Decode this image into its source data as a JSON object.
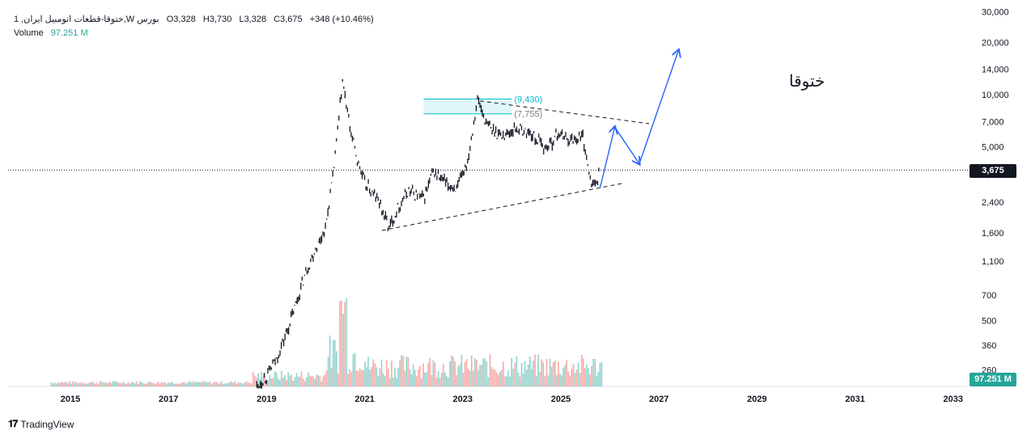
{
  "header": {
    "symbol": "1 ,ختوقا-قطعات اتومبیل ایران,W بورس",
    "open": "O3,328",
    "high": "H3,730",
    "low": "L3,328",
    "close": "C3,675",
    "change": "+348 (+10.46%)",
    "volume_label": "Volume",
    "volume_value": "97.251 M"
  },
  "annotation_text": "ختوقا",
  "last_price_badge": "3,675",
  "volume_badge": "97.251 M",
  "zone_top_label": "(9,430)",
  "zone_bottom_label": "(7,755)",
  "brand": "TradingView",
  "colors": {
    "candle": "#131722",
    "volume_up": "#26a69a",
    "volume_down": "#ef5350",
    "projection": "#2962ff",
    "zone_fill": "#e0f7fa",
    "zone_border": "#00bcd4",
    "zone_label": "#00bcd4",
    "zone_label_grey": "#787b86"
  },
  "chart_data": {
    "type": "line",
    "price_axis": {
      "scale": "log",
      "ticks": [
        260,
        360,
        500,
        700,
        1100,
        1600,
        2400,
        3500,
        5000,
        7000,
        10000,
        14000,
        20000,
        30000
      ]
    },
    "time_axis": {
      "ticks": [
        "2015",
        "2017",
        "2019",
        "2021",
        "2023",
        "2025",
        "2027",
        "2029",
        "2031",
        "2033"
      ]
    },
    "series": [
      {
        "values": [
          {
            "x": 2018.8,
            "y": 210
          },
          {
            "x": 2019.0,
            "y": 240
          },
          {
            "x": 2019.2,
            "y": 300
          },
          {
            "x": 2019.4,
            "y": 420
          },
          {
            "x": 2019.6,
            "y": 620
          },
          {
            "x": 2019.8,
            "y": 950
          },
          {
            "x": 2020.0,
            "y": 1300
          },
          {
            "x": 2020.2,
            "y": 1700
          },
          {
            "x": 2020.35,
            "y": 3300
          },
          {
            "x": 2020.55,
            "y": 11800
          },
          {
            "x": 2020.7,
            "y": 6500
          },
          {
            "x": 2020.85,
            "y": 4200
          },
          {
            "x": 2021.0,
            "y": 3100
          },
          {
            "x": 2021.3,
            "y": 2400
          },
          {
            "x": 2021.5,
            "y": 1700
          },
          {
            "x": 2021.7,
            "y": 2300
          },
          {
            "x": 2021.9,
            "y": 2800
          },
          {
            "x": 2022.2,
            "y": 2500
          },
          {
            "x": 2022.4,
            "y": 3600
          },
          {
            "x": 2022.7,
            "y": 3000
          },
          {
            "x": 2022.9,
            "y": 2900
          },
          {
            "x": 2023.1,
            "y": 4200
          },
          {
            "x": 2023.3,
            "y": 9430
          },
          {
            "x": 2023.5,
            "y": 6600
          },
          {
            "x": 2023.8,
            "y": 5800
          },
          {
            "x": 2024.1,
            "y": 6400
          },
          {
            "x": 2024.4,
            "y": 5900
          },
          {
            "x": 2024.7,
            "y": 4900
          },
          {
            "x": 2024.95,
            "y": 6000
          },
          {
            "x": 2025.2,
            "y": 5500
          },
          {
            "x": 2025.45,
            "y": 5800
          },
          {
            "x": 2025.6,
            "y": 3200
          },
          {
            "x": 2025.7,
            "y": 3000
          },
          {
            "x": 2025.8,
            "y": 3675
          }
        ]
      }
    ],
    "volume_note": "volume histogram in teal/red, peaks mid-2020",
    "support_line": [
      {
        "x": 2021.35,
        "y": 1650
      },
      {
        "x": 2026.3,
        "y": 3100
      }
    ],
    "resistance_line": [
      {
        "x": 2023.35,
        "y": 9200
      },
      {
        "x": 2026.8,
        "y": 6800
      }
    ],
    "projection": [
      {
        "x": 2025.8,
        "y": 2900
      },
      {
        "x": 2026.1,
        "y": 6500
      },
      {
        "x": 2026.6,
        "y": 4000
      },
      {
        "x": 2027.4,
        "y": 18000
      }
    ],
    "zone": {
      "x_start": 2022.2,
      "x_end": 2024.0,
      "top": 9430,
      "bottom": 7755
    }
  }
}
